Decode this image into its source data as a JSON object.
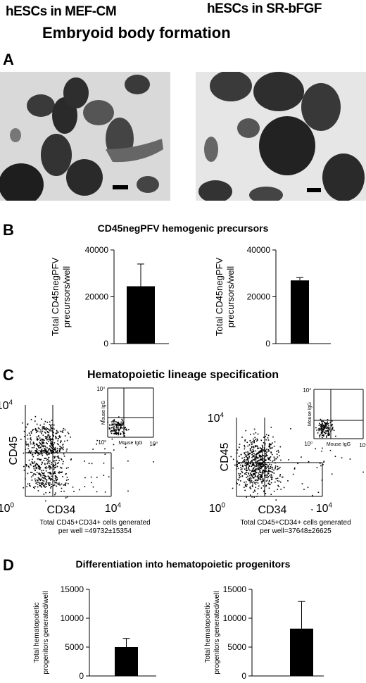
{
  "header": {
    "left_condition": "hESCs in MEF-CM",
    "right_condition": "hESCs in SR-bFGF",
    "title": "Embryoid body formation"
  },
  "panels": {
    "A": "A",
    "B": "B",
    "C": "C",
    "D": "D"
  },
  "section_b": {
    "title": "CD45negPFV hemogenic precursors"
  },
  "section_c": {
    "title": "Hematopoietic lineage specification",
    "axis_min": "10",
    "axis_min_exp": "0",
    "axis_max": "10",
    "axis_max_exp": "4",
    "y_label": "CD45",
    "x_label": "CD34",
    "inset_y_label": "Mouse IgG",
    "inset_x_label": "Mouse IgG",
    "left_caption_1": "Total CD45+CD34+ cells generated",
    "left_caption_2": "per well =49732±15354",
    "right_caption_1": "Total CD45+CD34+ cells generated",
    "right_caption_2": "per well=37648±26625"
  },
  "section_d": {
    "title": "Differentiation into hematopoietic progenitors"
  },
  "chart_data": [
    {
      "type": "bar",
      "panel": "B-left",
      "categories": [
        ""
      ],
      "values": [
        24500
      ],
      "error": [
        9500
      ],
      "ylim": [
        0,
        40000
      ],
      "yticks": [
        "0",
        "20000",
        "40000"
      ],
      "ylabel_lines": [
        "Total CD45negPFV",
        "precursors/well"
      ],
      "xlabel": ""
    },
    {
      "type": "bar",
      "panel": "B-right",
      "categories": [
        ""
      ],
      "values": [
        27000
      ],
      "error": [
        1200
      ],
      "ylim": [
        0,
        40000
      ],
      "yticks": [
        "0",
        "20000",
        "40000"
      ],
      "ylabel_lines": [
        "Total CD45negPFV",
        "precursors/well"
      ],
      "xlabel": ""
    },
    {
      "type": "bar",
      "panel": "D-left",
      "categories": [
        ""
      ],
      "values": [
        5000
      ],
      "error": [
        1500
      ],
      "ylim": [
        0,
        15000
      ],
      "yticks": [
        "0",
        "5000",
        "10000",
        "15000"
      ],
      "ylabel_lines": [
        "Total hematopoietic",
        "progenitors generated/well"
      ],
      "xlabel": ""
    },
    {
      "type": "bar",
      "panel": "D-right",
      "categories": [
        ""
      ],
      "values": [
        8200
      ],
      "error": [
        4700
      ],
      "ylim": [
        0,
        15000
      ],
      "yticks": [
        "0",
        "5000",
        "10000",
        "15000"
      ],
      "ylabel_lines": [
        "Total hematopoietic",
        "progenitors generated/well"
      ],
      "xlabel": ""
    }
  ]
}
